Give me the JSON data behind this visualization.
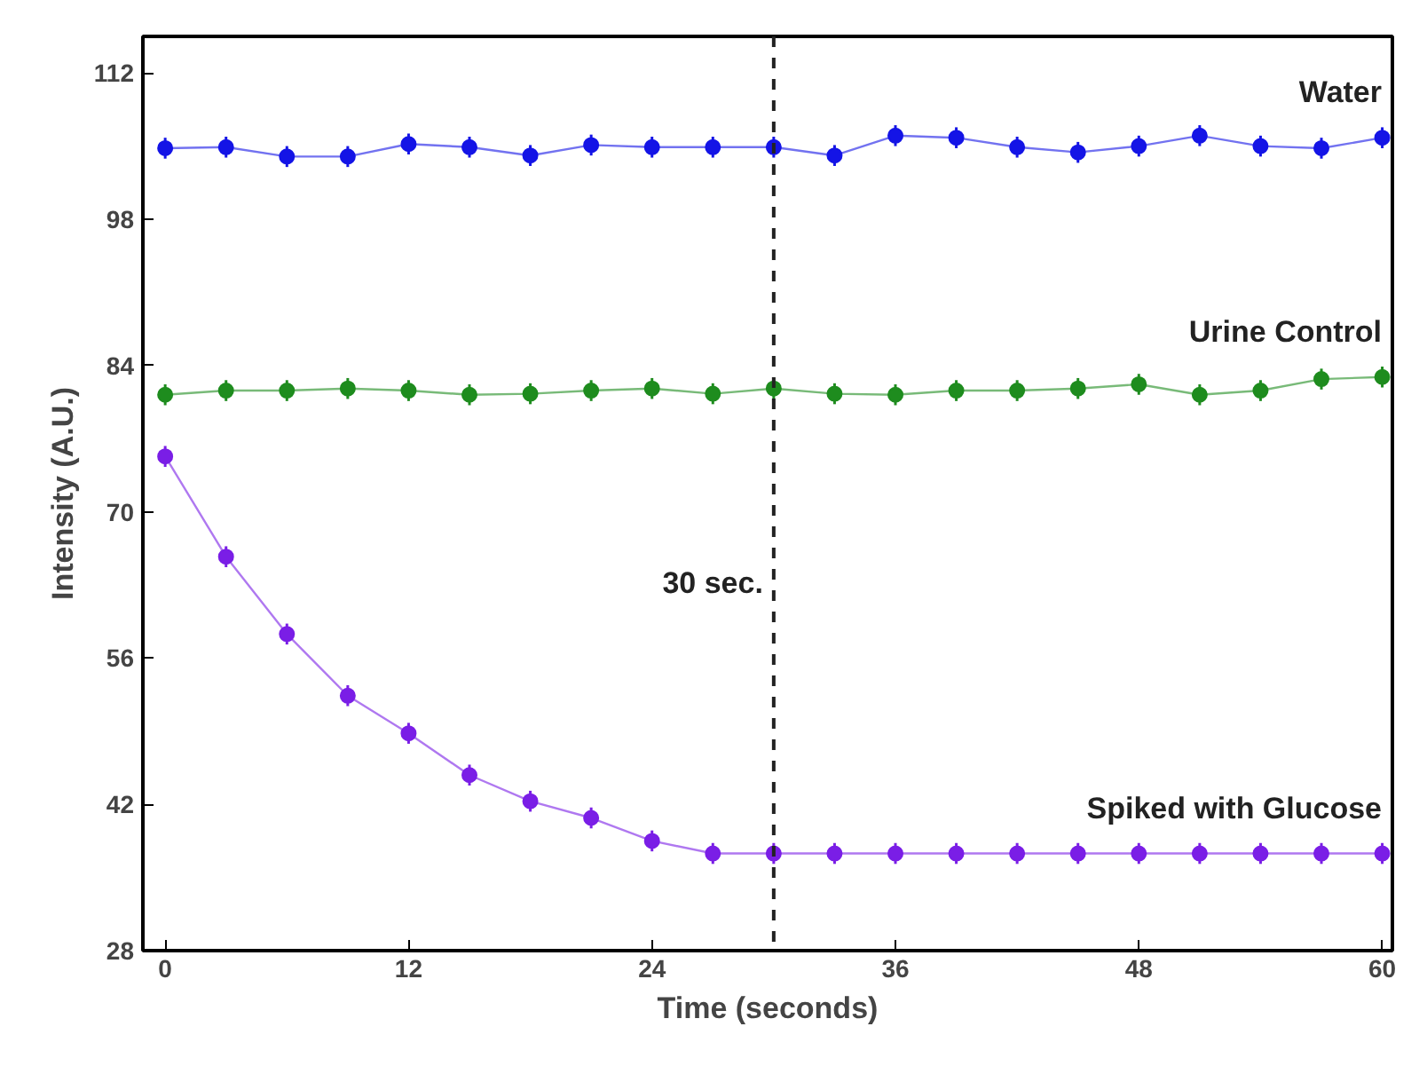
{
  "chart_data": {
    "type": "line",
    "xlabel": "Time (seconds)",
    "ylabel": "Intensity (A.U.)",
    "x": [
      0,
      3,
      6,
      9,
      12,
      15,
      18,
      21,
      24,
      27,
      30,
      33,
      36,
      39,
      42,
      45,
      48,
      51,
      54,
      57,
      60
    ],
    "xlim": [
      -1.1,
      60.5
    ],
    "xticks": [
      0,
      12,
      24,
      36,
      48,
      60
    ],
    "ylim": [
      28,
      115.5
    ],
    "yticks": [
      28,
      42,
      56,
      70,
      84,
      98,
      112
    ],
    "grid": false,
    "marker": "circle",
    "line_style": "solid",
    "series": [
      {
        "name": "Water",
        "color": "#1414e6",
        "values": [
          104.8,
          104.9,
          104.0,
          104.0,
          105.2,
          104.9,
          104.1,
          105.1,
          104.9,
          104.9,
          104.9,
          104.1,
          106.0,
          105.8,
          104.9,
          104.4,
          105.0,
          106.0,
          105.0,
          104.8,
          105.8
        ],
        "errors": [
          1,
          1,
          1,
          1,
          1,
          1,
          1,
          1,
          1,
          1,
          1,
          1,
          1,
          1,
          1,
          1,
          1,
          1,
          1,
          1,
          1
        ]
      },
      {
        "name": "Urine Control",
        "color": "#1e8c1e",
        "values": [
          81.2,
          81.6,
          81.6,
          81.8,
          81.6,
          81.2,
          81.3,
          81.6,
          81.8,
          81.3,
          81.8,
          81.3,
          81.2,
          81.6,
          81.6,
          81.8,
          82.2,
          81.2,
          81.6,
          82.7,
          82.9
        ],
        "errors": [
          1,
          1,
          1,
          1,
          1,
          1,
          1,
          1,
          1,
          1,
          1,
          1,
          1,
          1,
          1,
          1,
          1,
          1,
          1,
          1,
          1
        ]
      },
      {
        "name": "Spiked with Glucose",
        "color": "#7a1ee6",
        "values": [
          75.3,
          65.7,
          58.3,
          52.4,
          48.8,
          44.8,
          42.3,
          40.7,
          38.5,
          37.3,
          37.3,
          37.3,
          37.3,
          37.3,
          37.3,
          37.3,
          37.3,
          37.3,
          37.3,
          37.3,
          37.3
        ],
        "errors": [
          1,
          1,
          1,
          1,
          1,
          1,
          1,
          1,
          1,
          1,
          1,
          1,
          1,
          1,
          1,
          1,
          1,
          1,
          1,
          1,
          1
        ]
      }
    ],
    "ref_lines": [
      {
        "axis": "x",
        "value": 30,
        "label": "30 sec.",
        "color": "#222222",
        "line_style": "dashed"
      }
    ]
  }
}
